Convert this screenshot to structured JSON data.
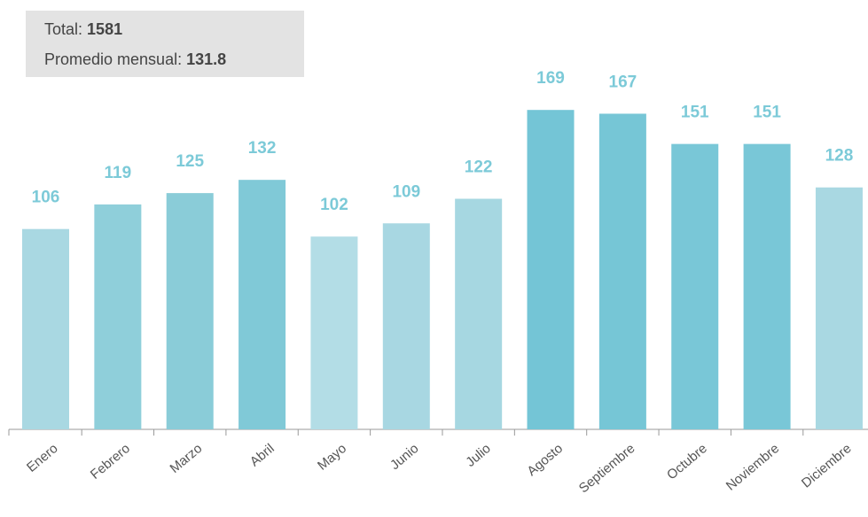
{
  "chart_data": {
    "type": "bar",
    "summary": {
      "total_label": "Total:",
      "total": 1581,
      "average_label": "Promedio mensual:",
      "average": 131.8
    },
    "categories": [
      "Enero",
      "Febrero",
      "Marzo",
      "Abril",
      "Mayo",
      "Junio",
      "Julio",
      "Agosto",
      "Septiembre",
      "Octubre",
      "Noviembre",
      "Diciembre"
    ],
    "values": [
      106,
      119,
      125,
      132,
      102,
      109,
      122,
      169,
      167,
      151,
      151,
      128
    ],
    "colors": [
      "#a9d8e2",
      "#8fcfda",
      "#8accd8",
      "#80c9d7",
      "#b3dde6",
      "#a8d7e2",
      "#a6d7e1",
      "#74c5d6",
      "#76c6d6",
      "#79c7d7",
      "#79c7d7",
      "#a9d8e2"
    ],
    "ylim": [
      0,
      200
    ]
  }
}
